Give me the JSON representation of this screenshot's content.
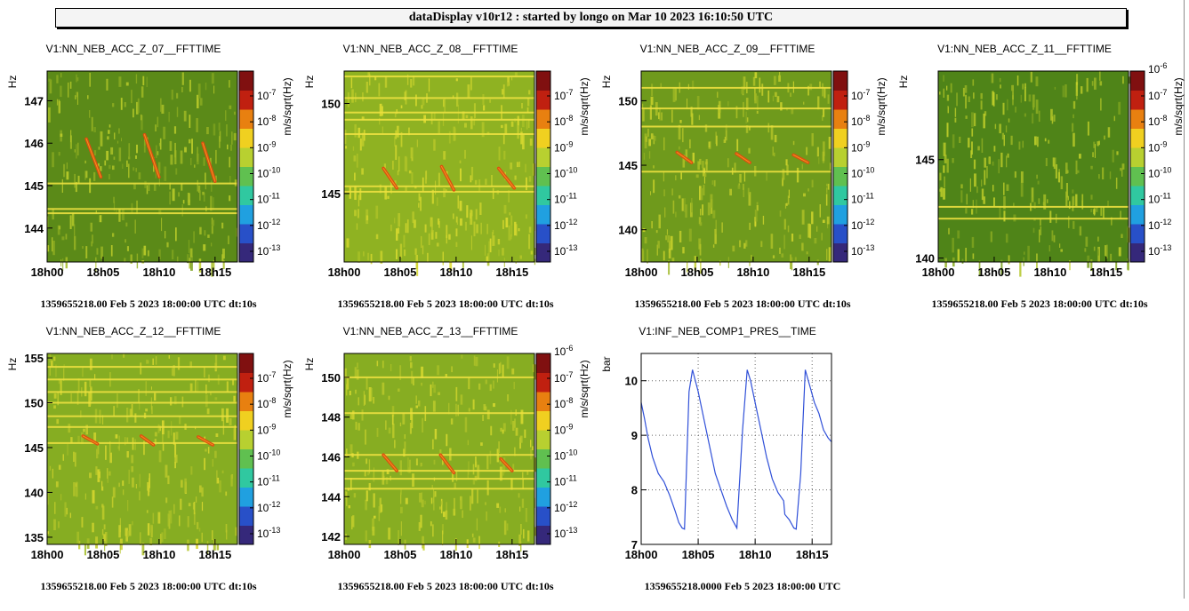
{
  "header": {
    "title": "dataDisplay v10r12 : started by longo on Mar 10 2023 16:10:50 UTC"
  },
  "panels": [
    {
      "title": "V1:NN_NEB_ACC_Z_07__FFTTIME",
      "footer": "1359655218.00 Feb 5 2023 18:00:00 UTC dt:10s"
    },
    {
      "title": "V1:NN_NEB_ACC_Z_08__FFTTIME",
      "footer": "1359655218.00 Feb 5 2023 18:00:00 UTC dt:10s"
    },
    {
      "title": "V1:NN_NEB_ACC_Z_09__FFTTIME",
      "footer": "1359655218.00 Feb 5 2023 18:00:00 UTC dt:10s"
    },
    {
      "title": "V1:NN_NEB_ACC_Z_11__FFTTIME",
      "footer": "1359655218.00 Feb 5 2023 18:00:00 UTC dt:10s"
    },
    {
      "title": "V1:NN_NEB_ACC_Z_12__FFTTIME",
      "footer": "1359655218.00 Feb 5 2023 18:00:00 UTC dt:10s"
    },
    {
      "title": "V1:NN_NEB_ACC_Z_13__FFTTIME",
      "footer": "1359655218.00 Feb 5 2023 18:00:00 UTC dt:10s"
    },
    {
      "title": "V1:INF_NEB_COMP1_PRES__TIME",
      "footer": "1359655218.0000 Feb 5 2023 18:00:00 UTC"
    }
  ],
  "chart_data": [
    {
      "type": "heatmap",
      "title": "V1:NN_NEB_ACC_Z_07__FFTTIME",
      "ylabel": "Hz",
      "zlabel": "m/s/sqrt(Hz)",
      "x_ticks": [
        "18h00",
        "18h05",
        "18h10",
        "18h15"
      ],
      "ylim": [
        143.2,
        147.7
      ],
      "y_ticks": [
        144,
        145,
        146,
        147
      ],
      "z_ticks": [
        "10^-13",
        "10^-12",
        "10^-11",
        "10^-10",
        "10^-9",
        "10^-8",
        "10^-7"
      ],
      "zmax_label": "",
      "x_minutes": [
        0,
        17
      ],
      "streaks": [
        {
          "start_min": 3.5,
          "end_min": 4.8,
          "start_hz": 146.1,
          "end_hz": 145.2
        },
        {
          "start_min": 8.7,
          "end_min": 10.0,
          "start_hz": 146.2,
          "end_hz": 145.2
        },
        {
          "start_min": 13.9,
          "end_min": 15.0,
          "start_hz": 146.0,
          "end_hz": 145.1
        }
      ],
      "lines_hz": [
        145.05,
        144.45,
        144.35
      ],
      "colors": {
        "dark": "#5b8a18",
        "light": "#c3d12c"
      }
    },
    {
      "type": "heatmap",
      "title": "V1:NN_NEB_ACC_Z_08__FFTTIME",
      "ylabel": "Hz",
      "zlabel": "m/s/sqrt(Hz)",
      "x_ticks": [
        "18h00",
        "18h05",
        "18h10",
        "18h15"
      ],
      "ylim": [
        141.2,
        151.8
      ],
      "y_ticks": [
        145,
        150
      ],
      "z_ticks": [
        "10^-13",
        "10^-12",
        "10^-11",
        "10^-10",
        "10^-9",
        "10^-8",
        "10^-7"
      ],
      "zmax_label": "",
      "x_minutes": [
        0,
        17
      ],
      "streaks": [
        {
          "start_min": 3.5,
          "end_min": 4.7,
          "start_hz": 146.4,
          "end_hz": 145.3
        },
        {
          "start_min": 8.7,
          "end_min": 9.8,
          "start_hz": 146.5,
          "end_hz": 145.2
        },
        {
          "start_min": 13.8,
          "end_min": 15.2,
          "start_hz": 146.4,
          "end_hz": 145.3
        }
      ],
      "lines_hz": [
        151.5,
        150.3,
        149.5,
        149.1,
        148.3,
        145.4,
        145.1
      ],
      "colors": {
        "dark": "#8fb222",
        "light": "#e0dd30"
      }
    },
    {
      "type": "heatmap",
      "title": "V1:NN_NEB_ACC_Z_09__FFTTIME",
      "ylabel": "Hz",
      "zlabel": "m/s/sqrt(Hz)",
      "x_ticks": [
        "18h00",
        "18h05",
        "18h10",
        "18h15"
      ],
      "ylim": [
        137.5,
        152.3
      ],
      "y_ticks": [
        140,
        145,
        150
      ],
      "z_ticks": [
        "10^-13",
        "10^-12",
        "10^-11",
        "10^-10",
        "10^-9",
        "10^-8",
        "10^-7"
      ],
      "zmax_label": "",
      "x_minutes": [
        0,
        17
      ],
      "streaks": [
        {
          "start_min": 3.2,
          "end_min": 4.5,
          "start_hz": 146.0,
          "end_hz": 145.2
        },
        {
          "start_min": 8.5,
          "end_min": 9.7,
          "start_hz": 145.9,
          "end_hz": 145.2
        },
        {
          "start_min": 13.6,
          "end_min": 14.9,
          "start_hz": 145.8,
          "end_hz": 145.2
        }
      ],
      "lines_hz": [
        151.0,
        149.4,
        148.0,
        144.5
      ],
      "colors": {
        "dark": "#6f9a1c",
        "light": "#d5d82e"
      }
    },
    {
      "type": "heatmap",
      "title": "V1:NN_NEB_ACC_Z_11__FFTTIME",
      "ylabel": "Hz",
      "zlabel": "m/s/sqrt(Hz)",
      "x_ticks": [
        "18h00",
        "18h05",
        "18h10",
        "18h15"
      ],
      "ylim": [
        139.8,
        149.5
      ],
      "y_ticks": [
        140,
        145
      ],
      "z_ticks": [
        "10^-13",
        "10^-12",
        "10^-11",
        "10^-10",
        "10^-9",
        "10^-8",
        "10^-7"
      ],
      "zmax_label": "10^-6",
      "x_minutes": [
        0,
        17
      ],
      "streaks": [],
      "lines_hz": [
        142.6,
        142.0
      ],
      "colors": {
        "dark": "#4f8418",
        "light": "#c8d42c"
      }
    },
    {
      "type": "heatmap",
      "title": "V1:NN_NEB_ACC_Z_12__FFTTIME",
      "ylabel": "Hz",
      "zlabel": "m/s/sqrt(Hz)",
      "x_ticks": [
        "18h00",
        "18h05",
        "18h10",
        "18h15"
      ],
      "ylim": [
        134.2,
        155.5
      ],
      "y_ticks": [
        135,
        140,
        145,
        150,
        155
      ],
      "z_ticks": [
        "10^-13",
        "10^-12",
        "10^-11",
        "10^-10",
        "10^-9",
        "10^-8",
        "10^-7"
      ],
      "zmax_label": "",
      "x_minutes": [
        0,
        17
      ],
      "streaks": [
        {
          "start_min": 3.2,
          "end_min": 4.5,
          "start_hz": 146.3,
          "end_hz": 145.4
        },
        {
          "start_min": 8.4,
          "end_min": 9.5,
          "start_hz": 146.3,
          "end_hz": 145.3
        },
        {
          "start_min": 13.5,
          "end_min": 14.8,
          "start_hz": 146.2,
          "end_hz": 145.3
        }
      ],
      "lines_hz": [
        154.0,
        152.6,
        151.2,
        150.0,
        148.5,
        147.3,
        145.5
      ],
      "colors": {
        "dark": "#86ad22",
        "light": "#dfdb30"
      }
    },
    {
      "type": "heatmap",
      "title": "V1:NN_NEB_ACC_Z_13__FFTTIME",
      "ylabel": "Hz",
      "zlabel": "m/s/sqrt(Hz)",
      "x_ticks": [
        "18h00",
        "18h05",
        "18h10",
        "18h15"
      ],
      "ylim": [
        141.6,
        151.2
      ],
      "y_ticks": [
        142,
        144,
        146,
        148,
        150
      ],
      "z_ticks": [
        "10^-13",
        "10^-12",
        "10^-11",
        "10^-10",
        "10^-9",
        "10^-8",
        "10^-7"
      ],
      "zmax_label": "10^-6",
      "x_minutes": [
        0,
        17
      ],
      "streaks": [
        {
          "start_min": 3.5,
          "end_min": 4.7,
          "start_hz": 146.1,
          "end_hz": 145.3
        },
        {
          "start_min": 8.6,
          "end_min": 9.8,
          "start_hz": 146.1,
          "end_hz": 145.2
        },
        {
          "start_min": 14.0,
          "end_min": 15.0,
          "start_hz": 145.9,
          "end_hz": 145.3
        }
      ],
      "lines_hz": [
        150.0,
        148.2,
        146.1,
        145.3,
        144.9,
        144.4
      ],
      "colors": {
        "dark": "#87ad22",
        "light": "#dedc30"
      }
    },
    {
      "type": "line",
      "title": "V1:INF_NEB_COMP1_PRES__TIME",
      "ylabel": "bar",
      "xlabel": "",
      "x_ticks": [
        "18h00",
        "18h05",
        "18h10",
        "18h15"
      ],
      "xlim": [
        0,
        16.7
      ],
      "ylim": [
        7,
        10.5
      ],
      "y_ticks": [
        7,
        8,
        9,
        10
      ],
      "grid": true,
      "series": [
        {
          "color": "#3050d8",
          "x": [
            0,
            0.3,
            0.6,
            1.0,
            1.5,
            2.0,
            2.5,
            3.0,
            3.3,
            3.6,
            3.8,
            4.2,
            4.5,
            5.0,
            5.5,
            6.0,
            6.5,
            7.0,
            7.5,
            8.0,
            8.4,
            8.9,
            9.3,
            9.6,
            10.0,
            10.5,
            11.0,
            11.5,
            12.0,
            12.5,
            12.6,
            13.0,
            13.4,
            13.6,
            14.0,
            14.4,
            14.8,
            15.2,
            15.6,
            16.0,
            16.4,
            16.7
          ],
          "y": [
            9.6,
            9.3,
            8.95,
            8.6,
            8.3,
            8.15,
            7.9,
            7.6,
            7.4,
            7.3,
            7.28,
            9.8,
            10.2,
            9.8,
            9.3,
            8.8,
            8.3,
            8.0,
            7.7,
            7.45,
            7.3,
            9.1,
            10.2,
            10.0,
            9.6,
            9.1,
            8.6,
            8.2,
            7.95,
            7.8,
            7.55,
            7.45,
            7.3,
            7.28,
            8.3,
            10.2,
            9.9,
            9.6,
            9.4,
            9.1,
            8.95,
            8.88
          ]
        }
      ]
    }
  ]
}
